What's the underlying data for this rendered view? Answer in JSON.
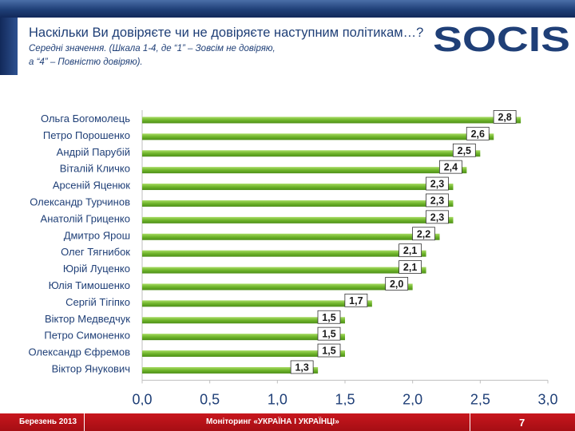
{
  "header": {
    "title_main": "Наскільки Ви довіряєте чи не довіряєте наступним політикам…?",
    "title_note": "Середні значення. (Шкала 1-4, де “1” – Зовсім не довіряю,",
    "title_note2": "а “4” – Повністю довіряю)."
  },
  "logo": {
    "text": "SOCIS"
  },
  "colors": {
    "bar": "#6fb52b",
    "bar_light": "#a8dc64",
    "brand_blue": "#1f3f77",
    "footer_red": "#b5121b"
  },
  "chart_data": {
    "type": "bar",
    "orientation": "horizontal",
    "title": "Наскільки Ви довіряєте чи не довіряєте наступним політикам…?",
    "categories": [
      "Ольга Богомолець",
      "Петро Порошенко",
      "Андрій Парубій",
      "Віталій Кличко",
      "Арсеній Яценюк",
      "Олександр Турчинов",
      "Анатолій Гриценко",
      "Дмитро Ярош",
      "Олег Тягнибок",
      "Юрій Луценко",
      "Юлія Тимошенко",
      "Сергій Тігіпко",
      "Віктор Медведчук",
      "Петро Симоненко",
      "Олександр Єфремов",
      "Віктор Янукович"
    ],
    "values": [
      2.8,
      2.6,
      2.5,
      2.4,
      2.3,
      2.3,
      2.3,
      2.2,
      2.1,
      2.1,
      2.0,
      1.7,
      1.5,
      1.5,
      1.5,
      1.3
    ],
    "value_labels": [
      "2,8",
      "2,6",
      "2,5",
      "2,4",
      "2,3",
      "2,3",
      "2,3",
      "2,2",
      "2,1",
      "2,1",
      "2,0",
      "1,7",
      "1,5",
      "1,5",
      "1,5",
      "1,3"
    ],
    "xlim": [
      0,
      3
    ],
    "xticks": [
      "0,0",
      "0,5",
      "1,0",
      "1,5",
      "2,0",
      "2,5",
      "3,0"
    ],
    "xlabel": "",
    "ylabel": "",
    "grid": false
  },
  "footer": {
    "date": "Березень 2013",
    "title": "Моніторинг «УКРАЇНА І УКРАЇНЦІ»",
    "page": "7"
  }
}
